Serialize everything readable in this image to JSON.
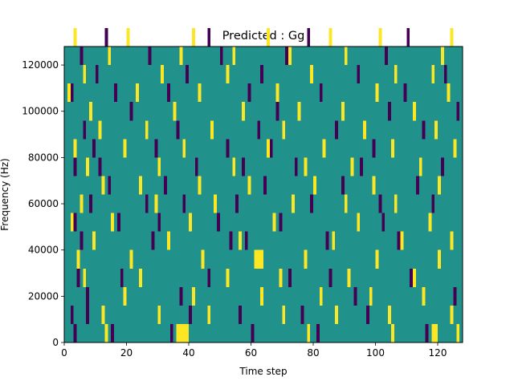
{
  "chart_data": {
    "type": "heatmap",
    "title": "Predicted : Gg",
    "xlabel": "Time step",
    "ylabel": "Frequency (Hz)",
    "xlim": [
      0,
      128
    ],
    "ylim": [
      0,
      128000
    ],
    "x_ticks": [
      0,
      20,
      40,
      60,
      80,
      100,
      120
    ],
    "y_ticks": [
      0,
      20000,
      40000,
      60000,
      80000,
      100000,
      120000
    ],
    "x_tick_labels": [
      "0",
      "20",
      "40",
      "60",
      "80",
      "100",
      "120"
    ],
    "y_tick_labels": [
      "0",
      "20000",
      "40000",
      "60000",
      "80000",
      "100000",
      "120000"
    ],
    "grid": false,
    "colormap": "viridis",
    "value_levels": [
      -1,
      0,
      1
    ],
    "background_value": 0,
    "colors": {
      "-1": "#440154",
      "0": "#21918c",
      "1": "#fde725"
    },
    "cells": [
      [
        -1,
        0,
        3,
        1
      ],
      [
        -1,
        0,
        15,
        1
      ],
      [
        -1,
        0,
        34,
        1
      ],
      [
        -1,
        0,
        60,
        1
      ],
      [
        -1,
        0,
        81,
        1
      ],
      [
        -1,
        0,
        116,
        1
      ],
      [
        -1,
        1,
        2,
        1
      ],
      [
        -1,
        1,
        7,
        1
      ],
      [
        -1,
        1,
        40,
        1
      ],
      [
        -1,
        1,
        56,
        1
      ],
      [
        -1,
        1,
        76,
        1
      ],
      [
        -1,
        1,
        97,
        1
      ],
      [
        -1,
        2,
        7,
        1
      ],
      [
        -1,
        2,
        37,
        1
      ],
      [
        -1,
        2,
        93,
        1
      ],
      [
        -1,
        2,
        125,
        1
      ],
      [
        -1,
        3,
        4,
        1
      ],
      [
        -1,
        3,
        18,
        1
      ],
      [
        -1,
        3,
        46,
        1
      ],
      [
        -1,
        3,
        72,
        1
      ],
      [
        -1,
        3,
        85,
        1
      ],
      [
        -1,
        3,
        111,
        1
      ],
      [
        -1,
        5,
        5,
        1
      ],
      [
        -1,
        5,
        28,
        1
      ],
      [
        -1,
        5,
        53,
        1
      ],
      [
        -1,
        5,
        58,
        1
      ],
      [
        -1,
        5,
        84,
        1
      ],
      [
        -1,
        5,
        107,
        1
      ],
      [
        -1,
        6,
        3,
        1
      ],
      [
        -1,
        6,
        17,
        1
      ],
      [
        -1,
        6,
        30,
        1
      ],
      [
        -1,
        6,
        49,
        1
      ],
      [
        -1,
        6,
        69,
        1
      ],
      [
        -1,
        6,
        102,
        1
      ],
      [
        -1,
        7,
        8,
        1
      ],
      [
        -1,
        7,
        26,
        1
      ],
      [
        -1,
        7,
        38,
        1
      ],
      [
        -1,
        7,
        55,
        1
      ],
      [
        -1,
        7,
        79,
        1
      ],
      [
        -1,
        7,
        101,
        1
      ],
      [
        -1,
        7,
        118,
        1
      ],
      [
        -1,
        8,
        14,
        1
      ],
      [
        -1,
        8,
        32,
        1
      ],
      [
        -1,
        8,
        64,
        1
      ],
      [
        -1,
        8,
        89,
        1
      ],
      [
        -1,
        8,
        113,
        1
      ],
      [
        -1,
        9,
        3,
        1
      ],
      [
        -1,
        9,
        11,
        1
      ],
      [
        -1,
        9,
        42,
        1
      ],
      [
        -1,
        9,
        57,
        1
      ],
      [
        -1,
        9,
        74,
        1
      ],
      [
        -1,
        9,
        95,
        1
      ],
      [
        -1,
        9,
        121,
        1
      ],
      [
        -1,
        10,
        9,
        1
      ],
      [
        -1,
        10,
        29,
        1
      ],
      [
        -1,
        10,
        52,
        1
      ],
      [
        -1,
        10,
        66,
        1
      ],
      [
        -1,
        10,
        99,
        1
      ],
      [
        -1,
        11,
        6,
        1
      ],
      [
        -1,
        11,
        36,
        1
      ],
      [
        -1,
        11,
        62,
        1
      ],
      [
        -1,
        11,
        87,
        1
      ],
      [
        -1,
        11,
        115,
        1
      ],
      [
        -1,
        12,
        21,
        1
      ],
      [
        -1,
        12,
        44,
        1
      ],
      [
        -1,
        12,
        68,
        1
      ],
      [
        -1,
        12,
        104,
        1
      ],
      [
        -1,
        12,
        126,
        1
      ],
      [
        -1,
        13,
        2,
        1
      ],
      [
        -1,
        13,
        16,
        1
      ],
      [
        -1,
        13,
        33,
        1
      ],
      [
        -1,
        13,
        59,
        1
      ],
      [
        -1,
        13,
        82,
        1
      ],
      [
        -1,
        13,
        109,
        1
      ],
      [
        -1,
        14,
        10,
        1
      ],
      [
        -1,
        14,
        39,
        1
      ],
      [
        -1,
        14,
        63,
        1
      ],
      [
        -1,
        14,
        94,
        1
      ],
      [
        -1,
        14,
        122,
        1
      ],
      [
        -1,
        15,
        5,
        1
      ],
      [
        -1,
        15,
        27,
        1
      ],
      [
        -1,
        15,
        50,
        1
      ],
      [
        -1,
        15,
        71,
        1
      ],
      [
        -1,
        15,
        103,
        1
      ],
      [
        -1,
        16,
        13,
        1
      ],
      [
        -1,
        16,
        46,
        1
      ],
      [
        -1,
        16,
        78,
        1
      ],
      [
        -1,
        16,
        110,
        1
      ],
      [
        0,
        12,
        44,
        5
      ],
      [
        1,
        0,
        13,
        1
      ],
      [
        1,
        0,
        36,
        4
      ],
      [
        1,
        0,
        78,
        1
      ],
      [
        1,
        0,
        105,
        1
      ],
      [
        1,
        0,
        118,
        2
      ],
      [
        1,
        0,
        126,
        1
      ],
      [
        1,
        1,
        12,
        1
      ],
      [
        1,
        1,
        30,
        1
      ],
      [
        1,
        1,
        46,
        1
      ],
      [
        1,
        1,
        70,
        1
      ],
      [
        1,
        1,
        87,
        1
      ],
      [
        1,
        1,
        104,
        1
      ],
      [
        1,
        1,
        124,
        1
      ],
      [
        1,
        2,
        19,
        1
      ],
      [
        1,
        2,
        41,
        1
      ],
      [
        1,
        2,
        63,
        1
      ],
      [
        1,
        2,
        82,
        1
      ],
      [
        1,
        2,
        98,
        1
      ],
      [
        1,
        2,
        115,
        1
      ],
      [
        1,
        3,
        6,
        1
      ],
      [
        1,
        3,
        24,
        1
      ],
      [
        1,
        3,
        52,
        1
      ],
      [
        1,
        3,
        69,
        1
      ],
      [
        1,
        3,
        91,
        1
      ],
      [
        1,
        3,
        112,
        1
      ],
      [
        1,
        4,
        4,
        1
      ],
      [
        1,
        4,
        21,
        1
      ],
      [
        1,
        4,
        44,
        1
      ],
      [
        1,
        4,
        61,
        3
      ],
      [
        1,
        4,
        77,
        1
      ],
      [
        1,
        4,
        100,
        1
      ],
      [
        1,
        4,
        120,
        1
      ],
      [
        1,
        5,
        9,
        1
      ],
      [
        1,
        5,
        33,
        1
      ],
      [
        1,
        5,
        56,
        1
      ],
      [
        1,
        5,
        86,
        1
      ],
      [
        1,
        5,
        108,
        1
      ],
      [
        1,
        5,
        124,
        1
      ],
      [
        1,
        6,
        2,
        1
      ],
      [
        1,
        6,
        15,
        1
      ],
      [
        1,
        6,
        40,
        1
      ],
      [
        1,
        6,
        67,
        1
      ],
      [
        1,
        6,
        94,
        1
      ],
      [
        1,
        6,
        117,
        1
      ],
      [
        1,
        7,
        5,
        1
      ],
      [
        1,
        7,
        29,
        1
      ],
      [
        1,
        7,
        48,
        1
      ],
      [
        1,
        7,
        73,
        1
      ],
      [
        1,
        7,
        90,
        1
      ],
      [
        1,
        7,
        106,
        1
      ],
      [
        1,
        8,
        12,
        1
      ],
      [
        1,
        8,
        24,
        1
      ],
      [
        1,
        8,
        43,
        1
      ],
      [
        1,
        8,
        59,
        1
      ],
      [
        1,
        8,
        80,
        1
      ],
      [
        1,
        8,
        99,
        1
      ],
      [
        1,
        8,
        120,
        1
      ],
      [
        1,
        9,
        7,
        1
      ],
      [
        1,
        9,
        30,
        1
      ],
      [
        1,
        9,
        54,
        1
      ],
      [
        1,
        9,
        77,
        1
      ],
      [
        1,
        9,
        92,
        1
      ],
      [
        1,
        9,
        114,
        1
      ],
      [
        1,
        10,
        3,
        1
      ],
      [
        1,
        10,
        19,
        1
      ],
      [
        1,
        10,
        38,
        1
      ],
      [
        1,
        10,
        65,
        1
      ],
      [
        1,
        10,
        83,
        1
      ],
      [
        1,
        10,
        105,
        1
      ],
      [
        1,
        10,
        125,
        1
      ],
      [
        1,
        11,
        11,
        1
      ],
      [
        1,
        11,
        26,
        1
      ],
      [
        1,
        11,
        47,
        1
      ],
      [
        1,
        11,
        70,
        1
      ],
      [
        1,
        11,
        96,
        1
      ],
      [
        1,
        11,
        119,
        1
      ],
      [
        1,
        12,
        8,
        1
      ],
      [
        1,
        12,
        35,
        1
      ],
      [
        1,
        12,
        57,
        1
      ],
      [
        1,
        12,
        75,
        1
      ],
      [
        1,
        12,
        89,
        1
      ],
      [
        1,
        12,
        112,
        1
      ],
      [
        1,
        13,
        1,
        1
      ],
      [
        1,
        13,
        23,
        1
      ],
      [
        1,
        13,
        43,
        1
      ],
      [
        1,
        13,
        68,
        1
      ],
      [
        1,
        13,
        100,
        1
      ],
      [
        1,
        13,
        123,
        1
      ],
      [
        1,
        14,
        6,
        1
      ],
      [
        1,
        14,
        31,
        1
      ],
      [
        1,
        14,
        52,
        1
      ],
      [
        1,
        14,
        79,
        1
      ],
      [
        1,
        14,
        106,
        1
      ],
      [
        1,
        14,
        118,
        1
      ],
      [
        1,
        15,
        14,
        1
      ],
      [
        1,
        15,
        37,
        1
      ],
      [
        1,
        15,
        54,
        1
      ],
      [
        1,
        15,
        72,
        1
      ],
      [
        1,
        15,
        90,
        1
      ],
      [
        1,
        15,
        121,
        1
      ],
      [
        1,
        16,
        3,
        1
      ],
      [
        1,
        16,
        20,
        1
      ],
      [
        1,
        16,
        41,
        1
      ],
      [
        1,
        16,
        65,
        1
      ],
      [
        1,
        16,
        85,
        1
      ],
      [
        1,
        16,
        101,
        1
      ],
      [
        1,
        16,
        124,
        1
      ]
    ]
  }
}
